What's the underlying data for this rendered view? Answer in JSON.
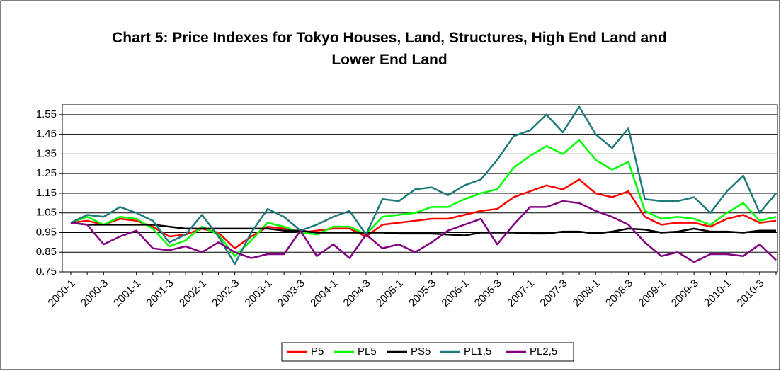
{
  "chart_data": {
    "type": "line",
    "title": "Chart 5: Price Indexes for Tokyo Houses, Land, Structures, High End Land and Lower End Land",
    "categories": [
      "2000-1",
      null,
      "2000-3",
      null,
      "2001-1",
      null,
      "2001-3",
      null,
      "2002-1",
      null,
      "2002-3",
      null,
      "2003-1",
      null,
      "2003-3",
      null,
      "2004-1",
      null,
      "2004-3",
      null,
      "2005-1",
      null,
      "2005-3",
      null,
      "2006-1",
      null,
      "2006-3",
      null,
      "2007-1",
      null,
      "2007-3",
      null,
      "2008-1",
      null,
      "2008-3",
      null,
      "2009-1",
      null,
      "2009-3",
      null,
      "2010-1",
      null,
      "2010-3",
      null
    ],
    "series": [
      {
        "name": "P5",
        "color": "#ff0000",
        "values": [
          1.0,
          1.01,
          0.99,
          1.02,
          1.01,
          0.98,
          0.93,
          0.94,
          0.97,
          0.95,
          0.87,
          0.93,
          0.98,
          0.97,
          0.95,
          0.96,
          0.97,
          0.97,
          0.93,
          0.99,
          1.0,
          1.01,
          1.02,
          1.02,
          1.04,
          1.06,
          1.07,
          1.13,
          1.16,
          1.19,
          1.17,
          1.22,
          1.15,
          1.13,
          1.16,
          1.03,
          0.99,
          1.0,
          1.0,
          0.98,
          1.02,
          1.04,
          1.0,
          1.01
        ]
      },
      {
        "name": "PL5",
        "color": "#00ff00",
        "values": [
          1.0,
          1.03,
          0.99,
          1.03,
          1.02,
          0.97,
          0.88,
          0.91,
          0.98,
          0.94,
          0.83,
          0.91,
          1.0,
          0.98,
          0.95,
          0.94,
          0.98,
          0.98,
          0.94,
          1.03,
          1.04,
          1.05,
          1.08,
          1.08,
          1.12,
          1.15,
          1.17,
          1.28,
          1.34,
          1.39,
          1.35,
          1.42,
          1.32,
          1.27,
          1.31,
          1.06,
          1.02,
          1.03,
          1.02,
          0.99,
          1.05,
          1.1,
          1.01,
          1.03
        ]
      },
      {
        "name": "PS5",
        "color": "#000000",
        "values": [
          1.0,
          0.99,
          0.99,
          0.99,
          0.99,
          0.99,
          0.98,
          0.97,
          0.97,
          0.97,
          0.97,
          0.97,
          0.97,
          0.96,
          0.96,
          0.95,
          0.95,
          0.95,
          0.95,
          0.95,
          0.945,
          0.945,
          0.945,
          0.94,
          0.935,
          0.95,
          0.95,
          0.95,
          0.945,
          0.945,
          0.955,
          0.955,
          0.945,
          0.955,
          0.97,
          0.965,
          0.95,
          0.955,
          0.97,
          0.955,
          0.955,
          0.95,
          0.96,
          0.96
        ]
      },
      {
        "name": "PL1,5",
        "color": "#1f7a7a",
        "values": [
          1.0,
          1.04,
          1.03,
          1.08,
          1.05,
          1.01,
          0.9,
          0.94,
          1.04,
          0.93,
          0.79,
          0.95,
          1.07,
          1.03,
          0.96,
          0.99,
          1.03,
          1.06,
          0.94,
          1.12,
          1.11,
          1.17,
          1.18,
          1.14,
          1.19,
          1.22,
          1.32,
          1.44,
          1.47,
          1.55,
          1.46,
          1.59,
          1.45,
          1.38,
          1.48,
          1.12,
          1.11,
          1.11,
          1.13,
          1.05,
          1.16,
          1.24,
          1.05,
          1.15
        ]
      },
      {
        "name": "PL2,5",
        "color": "#800080",
        "values": [
          1.0,
          0.99,
          0.89,
          0.93,
          0.96,
          0.87,
          0.86,
          0.88,
          0.85,
          0.9,
          0.85,
          0.82,
          0.84,
          0.84,
          0.96,
          0.83,
          0.89,
          0.82,
          0.94,
          0.87,
          0.89,
          0.85,
          0.9,
          0.96,
          0.99,
          1.02,
          0.89,
          0.99,
          1.08,
          1.08,
          1.11,
          1.1,
          1.06,
          1.03,
          0.99,
          0.9,
          0.83,
          0.85,
          0.8,
          0.84,
          0.84,
          0.83,
          0.89,
          0.81
        ]
      }
    ],
    "ylim": [
      0.75,
      1.6
    ],
    "yticks": [
      0.75,
      0.85,
      0.95,
      1.05,
      1.15,
      1.25,
      1.35,
      1.45,
      1.55
    ],
    "grid": true,
    "legend": "bottom"
  }
}
